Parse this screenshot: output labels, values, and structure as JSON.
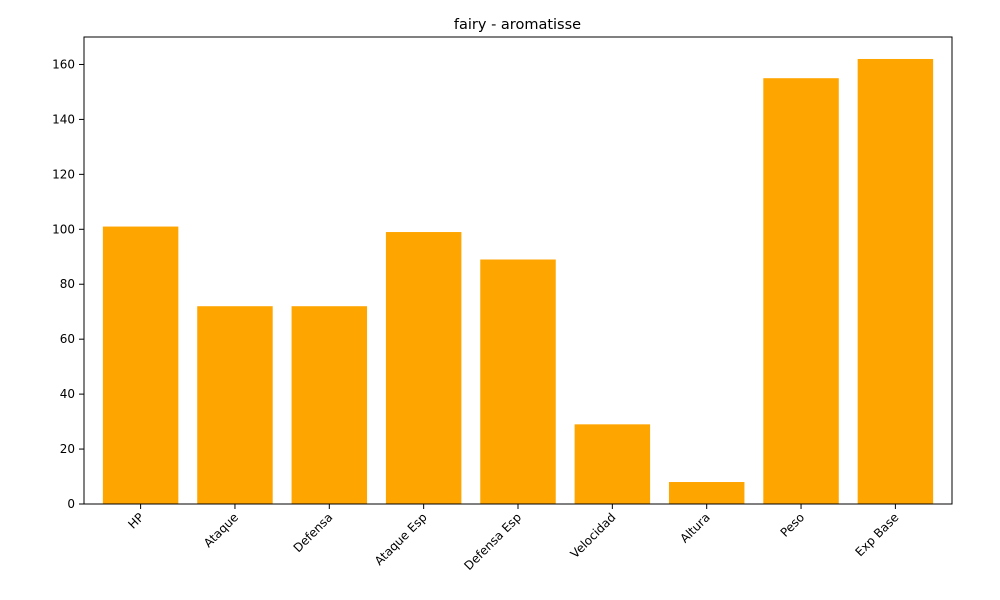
{
  "chart_data": {
    "type": "bar",
    "title": "fairy - aromatisse",
    "xlabel": "",
    "ylabel": "",
    "categories": [
      "HP",
      "Ataque",
      "Defensa",
      "Ataque Esp",
      "Defensa Esp",
      "Velocidad",
      "Altura",
      "Peso",
      "Exp Base"
    ],
    "values": [
      101,
      72,
      72,
      99,
      89,
      29,
      8,
      155,
      162
    ],
    "ylim": [
      0,
      170
    ],
    "yticks": [
      0,
      20,
      40,
      60,
      80,
      100,
      120,
      140,
      160
    ],
    "grid": false,
    "legend": "none",
    "bar_color": "#ffa500"
  }
}
